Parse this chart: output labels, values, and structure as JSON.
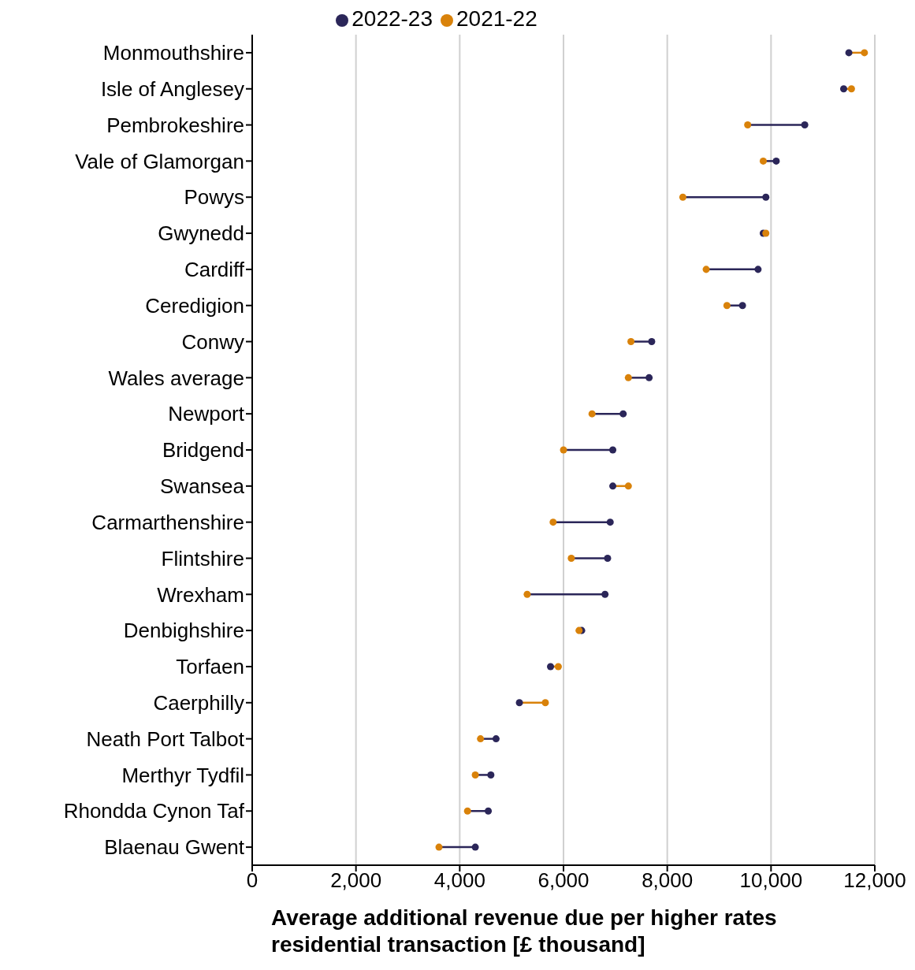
{
  "chart_data": {
    "type": "scatter",
    "xlabel": "Average additional revenue due per higher rates residential transaction [£ thousand]",
    "orientation": "horizontal",
    "categories": [
      "Monmouthshire",
      "Isle of Anglesey",
      "Pembrokeshire",
      "Vale of Glamorgan",
      "Powys",
      "Gwynedd",
      "Cardiff",
      "Ceredigion",
      "Conwy",
      "Wales average",
      "Newport",
      "Bridgend",
      "Swansea",
      "Carmarthenshire",
      "Flintshire",
      "Wrexham",
      "Denbighshire",
      "Torfaen",
      "Caerphilly",
      "Neath Port Talbot",
      "Merthyr Tydfil",
      "Rhondda Cynon Taf",
      "Blaenau Gwent"
    ],
    "series": [
      {
        "name": "2022-23",
        "color": "#2b2659",
        "values": [
          11500,
          11400,
          10650,
          10100,
          9900,
          9850,
          9750,
          9450,
          7700,
          7650,
          7150,
          6950,
          6950,
          6900,
          6850,
          6800,
          6350,
          5750,
          5150,
          4700,
          4600,
          4550,
          4300
        ]
      },
      {
        "name": "2021-22",
        "color": "#d9820a",
        "values": [
          11800,
          11550,
          9550,
          9850,
          8300,
          9900,
          8750,
          9150,
          7300,
          7250,
          6550,
          6000,
          7250,
          5800,
          6150,
          5300,
          6300,
          5900,
          5650,
          4400,
          4300,
          4150,
          3600
        ]
      }
    ],
    "xlim": [
      0,
      12000
    ],
    "xticks": [
      {
        "value": 0,
        "label": "0"
      },
      {
        "value": 2000,
        "label": "2,000"
      },
      {
        "value": 4000,
        "label": "4,000"
      },
      {
        "value": 6000,
        "label": "6,000"
      },
      {
        "value": 8000,
        "label": "8,000"
      },
      {
        "value": 10000,
        "label": "10,000"
      },
      {
        "value": 12000,
        "label": "12,000"
      }
    ],
    "grid": "x",
    "legend": "top",
    "marker": "circle"
  }
}
